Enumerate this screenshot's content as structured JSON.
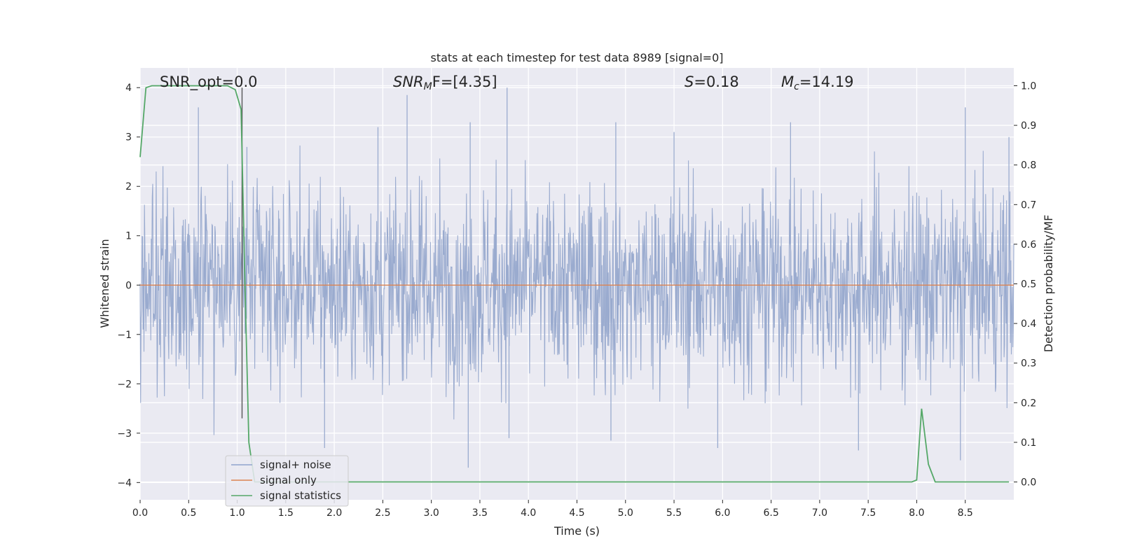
{
  "chart_data": {
    "type": "line",
    "title": "stats at each timestep for test data 8989 [signal=0]",
    "xlabel": "Time (s)",
    "ylabel_left": "Whitened strain",
    "ylabel_right": "Detection probability/MF",
    "xlim": [
      0,
      9.0
    ],
    "ylim_left": [
      -4.35,
      4.4
    ],
    "ylim_right": [
      -0.045,
      1.045
    ],
    "x_ticks": [
      "0.0",
      "0.5",
      "1.0",
      "1.5",
      "2.0",
      "2.5",
      "3.0",
      "3.5",
      "4.0",
      "4.5",
      "5.0",
      "5.5",
      "6.0",
      "6.5",
      "7.0",
      "7.5",
      "8.0",
      "8.5"
    ],
    "y_ticks_left": [
      "4",
      "3",
      "2",
      "1",
      "0",
      "−1",
      "−2",
      "−3",
      "−4"
    ],
    "y_ticks_right": [
      "1.0",
      "0.9",
      "0.8",
      "0.7",
      "0.6",
      "0.5",
      "0.4",
      "0.3",
      "0.2",
      "0.1",
      "0.0"
    ],
    "grid": true,
    "legend_position": "lower-left",
    "marker_line_x": 1.05,
    "annotations": {
      "snr_opt": "SNR_opt=0.0",
      "snr_mf_main": "SNR",
      "snr_mf_sub": "M",
      "snr_mf_rest": "F=[4.35]",
      "s_main": "S",
      "s_rest": "=0.18",
      "mc_main": "M",
      "mc_sub": "c",
      "mc_rest": "=14.19"
    },
    "series": [
      {
        "name": "signal+ noise",
        "axis": "left",
        "description_values": "noise band, approx std 1.0, peaks to about ±4",
        "spikes": [
          [
            0.6,
            3.6
          ],
          [
            1.1,
            2.8
          ],
          [
            2.45,
            3.2
          ],
          [
            2.75,
            3.85
          ],
          [
            3.4,
            3.3
          ],
          [
            3.78,
            4.0
          ],
          [
            4.9,
            3.3
          ],
          [
            5.5,
            3.1
          ],
          [
            6.7,
            3.3
          ],
          [
            8.5,
            3.6
          ],
          [
            8.95,
            3.0
          ],
          [
            1.9,
            -3.3
          ],
          [
            3.38,
            -3.7
          ],
          [
            3.8,
            -3.1
          ],
          [
            4.85,
            -3.15
          ],
          [
            5.95,
            -3.3
          ],
          [
            7.4,
            -3.35
          ],
          [
            8.45,
            -3.55
          ]
        ]
      },
      {
        "name": "signal only",
        "axis": "left",
        "x": [
          0,
          9.0
        ],
        "y": [
          0,
          0
        ]
      },
      {
        "name": "signal statistics",
        "axis": "right",
        "x": [
          0.0,
          0.06,
          0.12,
          0.5,
          0.9,
          0.98,
          1.04,
          1.08,
          1.12,
          1.18,
          1.25,
          3.0,
          7.0,
          7.95,
          8.0,
          8.05,
          8.12,
          8.19,
          8.95
        ],
        "y": [
          0.82,
          0.995,
          1.0,
          1.0,
          1.0,
          0.99,
          0.94,
          0.5,
          0.1,
          0.0,
          0.0,
          0.0,
          0.0,
          0.0,
          0.005,
          0.185,
          0.045,
          0.0,
          0.0
        ]
      }
    ]
  },
  "colors": {
    "plot_bg": "#eaeaf2",
    "grid": "#ffffff",
    "noise": "#9aabcf",
    "noise_legend": "#8fa3cc",
    "signal": "#dd8452",
    "stats": "#55a868",
    "marker": "#555555"
  }
}
